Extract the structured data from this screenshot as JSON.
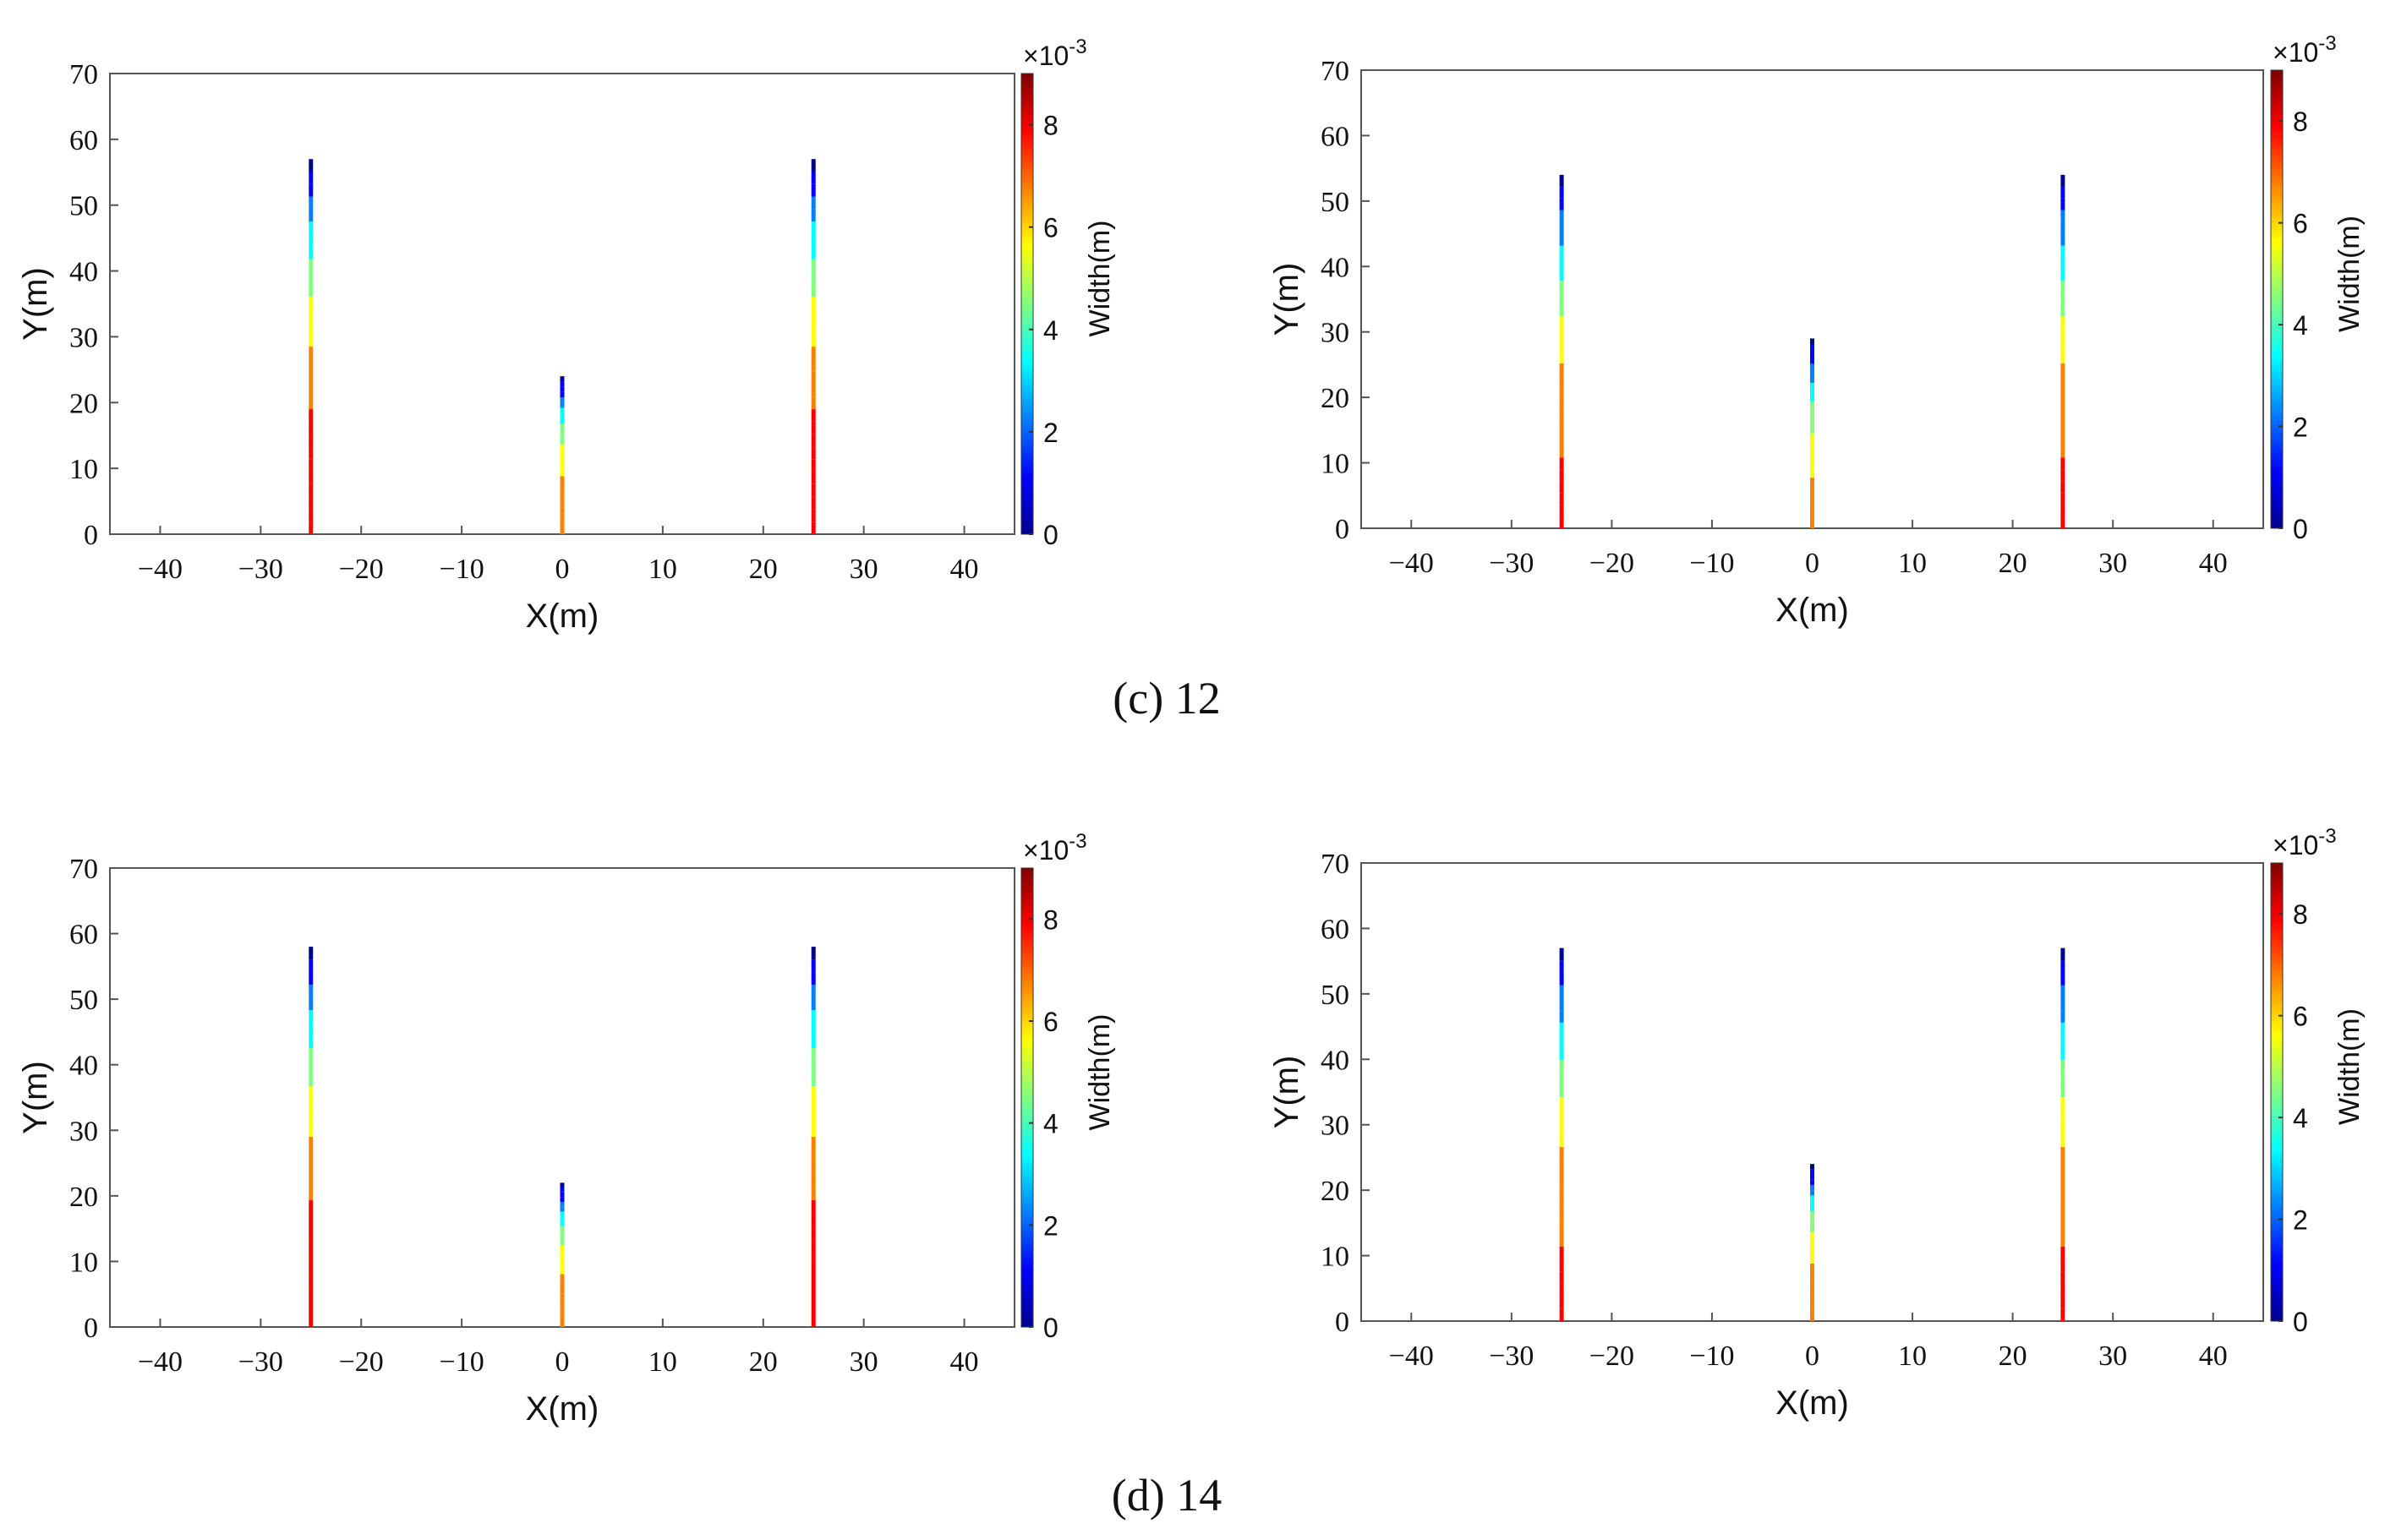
{
  "captions": [
    "(c) 12",
    "(d) 14"
  ],
  "colors": {
    "jet": [
      "#00008f",
      "#0000ff",
      "#0080ff",
      "#00ffff",
      "#80ff80",
      "#ffff00",
      "#ff8000",
      "#ff0000",
      "#800000"
    ]
  },
  "chart_data": [
    {
      "type": "line",
      "xlabel": "X(m)",
      "ylabel": "Y(m)",
      "xlim": [
        -45,
        45
      ],
      "ylim": [
        0,
        70
      ],
      "xticks": [
        -40,
        -30,
        -20,
        -10,
        0,
        10,
        20,
        30,
        40
      ],
      "yticks": [
        0,
        10,
        20,
        30,
        40,
        50,
        60,
        70
      ],
      "colorbar": {
        "label": "Width(m)",
        "scale": "×10",
        "exponent": "-3",
        "range": [
          0,
          9
        ],
        "ticks": [
          0,
          2,
          4,
          6,
          8
        ]
      },
      "series": [
        {
          "x": -25,
          "y": [
            0,
            57
          ],
          "width_at_base": 8.0
        },
        {
          "x": 0,
          "y": [
            0,
            24
          ],
          "width_at_base": 7.0
        },
        {
          "x": 25,
          "y": [
            0,
            57
          ],
          "width_at_base": 8.0
        }
      ],
      "grid": false
    },
    {
      "type": "line",
      "xlabel": "X(m)",
      "ylabel": "Y(m)",
      "xlim": [
        -45,
        45
      ],
      "ylim": [
        0,
        70
      ],
      "xticks": [
        -40,
        -30,
        -20,
        -10,
        0,
        10,
        20,
        30,
        40
      ],
      "yticks": [
        0,
        10,
        20,
        30,
        40,
        50,
        60,
        70
      ],
      "colorbar": {
        "label": "Width(m)",
        "scale": "×10",
        "exponent": "-3",
        "range": [
          0,
          9
        ],
        "ticks": [
          0,
          2,
          4,
          6,
          8
        ]
      },
      "series": [
        {
          "x": -25,
          "y": [
            0,
            54
          ],
          "width_at_base": 7.5
        },
        {
          "x": 0,
          "y": [
            0,
            29
          ],
          "width_at_base": 6.5
        },
        {
          "x": 25,
          "y": [
            0,
            54
          ],
          "width_at_base": 7.5
        }
      ],
      "grid": false
    },
    {
      "type": "line",
      "xlabel": "X(m)",
      "ylabel": "Y(m)",
      "xlim": [
        -45,
        45
      ],
      "ylim": [
        0,
        70
      ],
      "xticks": [
        -40,
        -30,
        -20,
        -10,
        0,
        10,
        20,
        30,
        40
      ],
      "yticks": [
        0,
        10,
        20,
        30,
        40,
        50,
        60,
        70
      ],
      "colorbar": {
        "label": "Width(m)",
        "scale": "×10",
        "exponent": "-3",
        "range": [
          0,
          9
        ],
        "ticks": [
          0,
          2,
          4,
          6,
          8
        ]
      },
      "series": [
        {
          "x": -25,
          "y": [
            0,
            58
          ],
          "width_at_base": 8.0
        },
        {
          "x": 0,
          "y": [
            0,
            22
          ],
          "width_at_base": 7.0
        },
        {
          "x": 25,
          "y": [
            0,
            58
          ],
          "width_at_base": 8.0
        }
      ],
      "grid": false
    },
    {
      "type": "line",
      "xlabel": "X(m)",
      "ylabel": "Y(m)",
      "xlim": [
        -45,
        45
      ],
      "ylim": [
        0,
        70
      ],
      "xticks": [
        -40,
        -30,
        -20,
        -10,
        0,
        10,
        20,
        30,
        40
      ],
      "yticks": [
        0,
        10,
        20,
        30,
        40,
        50,
        60,
        70
      ],
      "colorbar": {
        "label": "Width(m)",
        "scale": "×10",
        "exponent": "-3",
        "range": [
          0,
          9
        ],
        "ticks": [
          0,
          2,
          4,
          6,
          8
        ]
      },
      "series": [
        {
          "x": -25,
          "y": [
            0,
            57
          ],
          "width_at_base": 7.5
        },
        {
          "x": 0,
          "y": [
            0,
            24
          ],
          "width_at_base": 7.0
        },
        {
          "x": 25,
          "y": [
            0,
            57
          ],
          "width_at_base": 7.5
        }
      ],
      "grid": false
    }
  ]
}
